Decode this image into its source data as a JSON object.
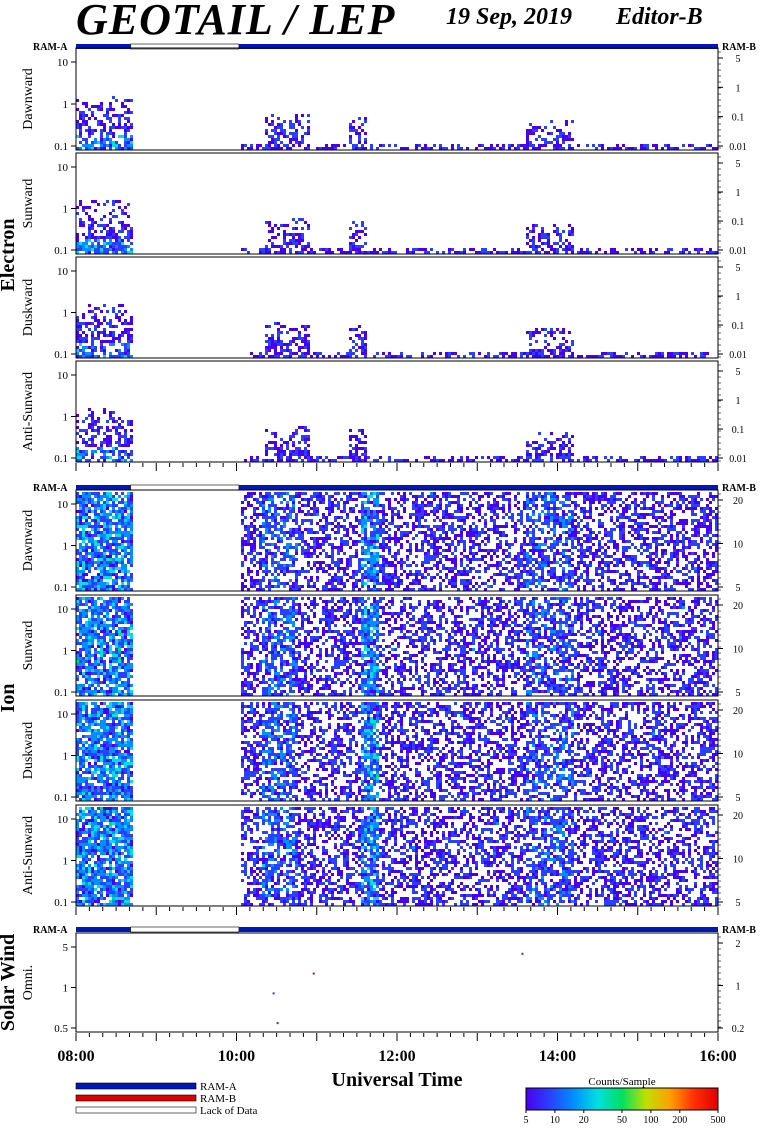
{
  "header": {
    "title": "GEOTAIL / LEP",
    "date": "19 Sep, 2019",
    "editor": "Editor-B"
  },
  "chart_data": {
    "type": "heatmap",
    "xlabel": "Universal Time",
    "x_ticks": [
      "08:00",
      "10:00",
      "12:00",
      "14:00",
      "16:00"
    ],
    "x_range_hours": [
      8,
      16
    ],
    "ram_labels": {
      "left": "RAM-A",
      "right": "RAM-B"
    },
    "ram_status": [
      {
        "start": 8.0,
        "end": 8.68,
        "status": "RAM-A"
      },
      {
        "start": 8.68,
        "end": 10.03,
        "status": "Lack of Data"
      },
      {
        "start": 10.03,
        "end": 16.0,
        "status": "RAM-A"
      }
    ],
    "data_gap_hours": [
      8.68,
      10.03
    ],
    "groups": [
      {
        "name": "Electron",
        "left_ticks": [
          "0.1",
          "1",
          "10"
        ],
        "right_ticks": [
          "0.01",
          "0.1",
          "1",
          "5"
        ],
        "panels": [
          "Dawnward",
          "Sunward",
          "Duskward",
          "Anti-Sunward"
        ]
      },
      {
        "name": "Ion",
        "left_ticks": [
          "0.1",
          "1",
          "10"
        ],
        "right_ticks": [
          "5",
          "10",
          "20"
        ],
        "panels": [
          "Dawnward",
          "Sunward",
          "Duskward",
          "Anti-Sunward"
        ]
      },
      {
        "name": "Solar Wind",
        "left_ticks": [
          "0.5",
          "1",
          "5"
        ],
        "right_ticks": [
          "0.2",
          "1",
          "2"
        ],
        "panels": [
          "Omni."
        ]
      }
    ],
    "legend": {
      "items": [
        {
          "label": "RAM-A",
          "color": "#0018b8"
        },
        {
          "label": "RAM-B",
          "color": "#e00000"
        },
        {
          "label": "Lack of Data",
          "color": "#ffffff"
        }
      ]
    },
    "colorbar": {
      "title": "Counts/Sample",
      "ticks": [
        "5",
        "10",
        "20",
        "50",
        "100",
        "200",
        "500"
      ],
      "colors": [
        "#4a00f0",
        "#2a40ff",
        "#0090ff",
        "#00e0e0",
        "#00e060",
        "#c0e000",
        "#ffa000",
        "#ff3000",
        "#e00000"
      ]
    }
  }
}
